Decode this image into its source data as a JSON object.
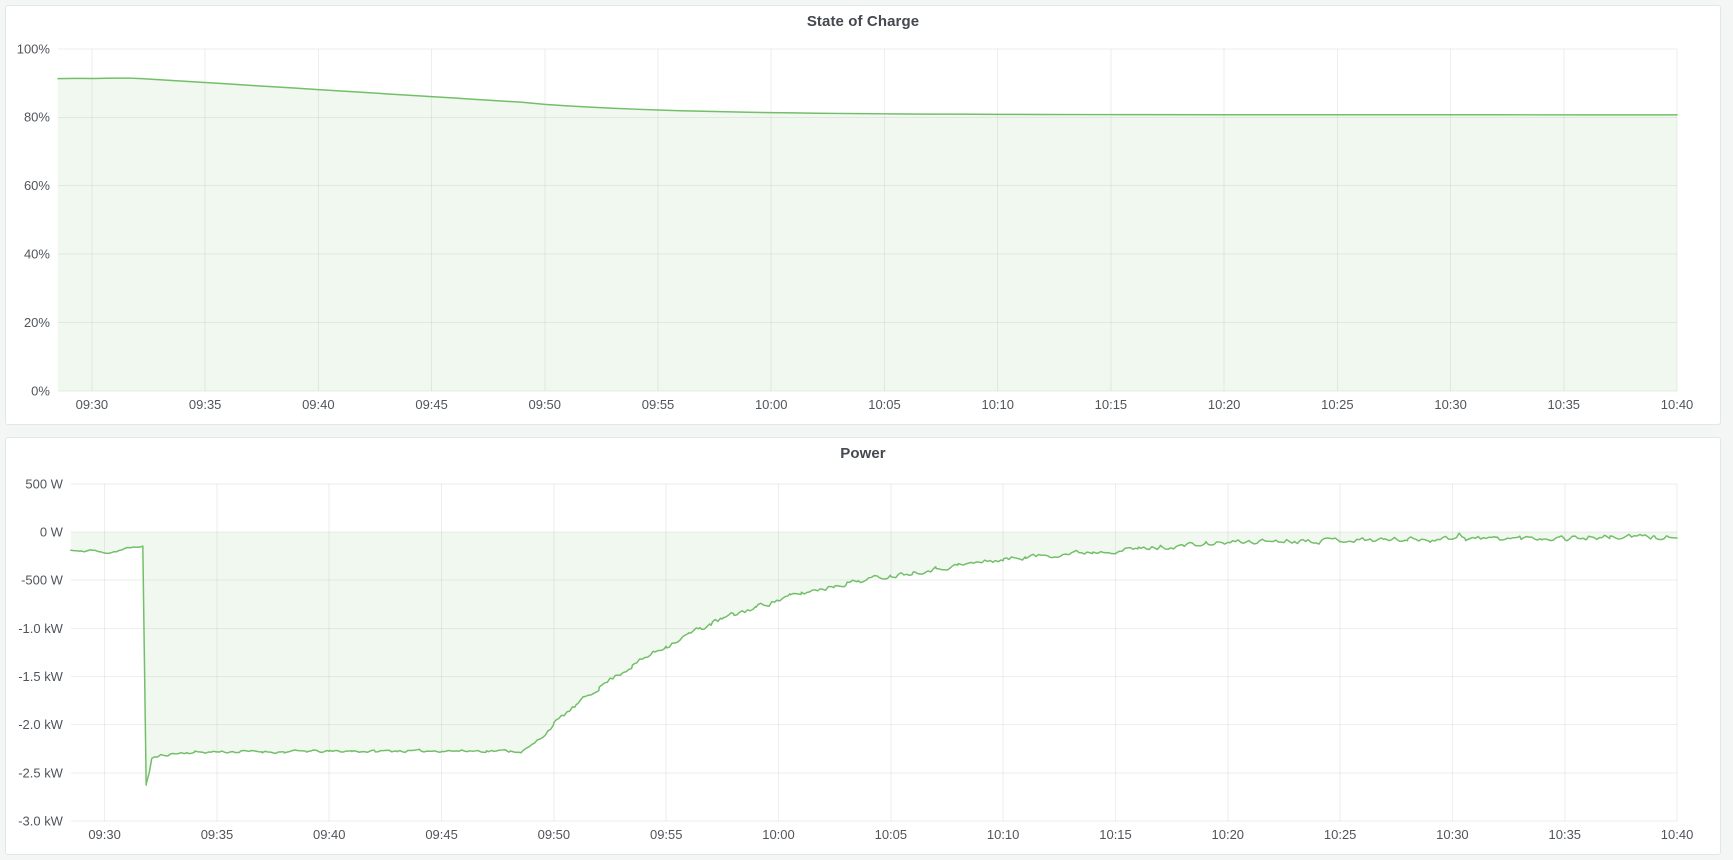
{
  "page": {
    "background_color": "#f4f5f5",
    "panel_background": "#ffffff",
    "panel_border_color": "#e2e6ec",
    "grid_color": "rgba(30,35,42,0.08)",
    "tick_text_color": "#50555b",
    "title_text_color": "#44494f",
    "accent_green": "#73bf69"
  },
  "chart_data": [
    {
      "type": "area",
      "title": "State of Charge",
      "legend": "none",
      "grid": true,
      "unit": "%",
      "line_color": "#73bf69",
      "fill_color": "rgba(115,191,105,0.11)",
      "x_range": [
        568.5,
        640
      ],
      "ylim": [
        0,
        100
      ],
      "x_ticks": [
        {
          "t": 570,
          "label": "09:30"
        },
        {
          "t": 575,
          "label": "09:35"
        },
        {
          "t": 580,
          "label": "09:40"
        },
        {
          "t": 585,
          "label": "09:45"
        },
        {
          "t": 590,
          "label": "09:50"
        },
        {
          "t": 595,
          "label": "09:55"
        },
        {
          "t": 600,
          "label": "10:00"
        },
        {
          "t": 605,
          "label": "10:05"
        },
        {
          "t": 610,
          "label": "10:10"
        },
        {
          "t": 615,
          "label": "10:15"
        },
        {
          "t": 620,
          "label": "10:20"
        },
        {
          "t": 625,
          "label": "10:25"
        },
        {
          "t": 630,
          "label": "10:30"
        },
        {
          "t": 635,
          "label": "10:35"
        },
        {
          "t": 640,
          "label": "10:40"
        }
      ],
      "y_ticks": [
        {
          "v": 100,
          "label": "100%"
        },
        {
          "v": 80,
          "label": "80%"
        },
        {
          "v": 60,
          "label": "60%"
        },
        {
          "v": 40,
          "label": "40%"
        },
        {
          "v": 20,
          "label": "20%"
        },
        {
          "v": 0,
          "label": "0%"
        }
      ],
      "points": [
        [
          568.5,
          91.3
        ],
        [
          569.3,
          91.35
        ],
        [
          570.1,
          91.32
        ],
        [
          570.9,
          91.42
        ],
        [
          571.6,
          91.45
        ],
        [
          572.2,
          91.3
        ],
        [
          573,
          90.97
        ],
        [
          574,
          90.56
        ],
        [
          575,
          90.15
        ],
        [
          576,
          89.74
        ],
        [
          577,
          89.32
        ],
        [
          578,
          88.91
        ],
        [
          579,
          88.5
        ],
        [
          580,
          88.09
        ],
        [
          581,
          87.68
        ],
        [
          582,
          87.26
        ],
        [
          583,
          86.85
        ],
        [
          584,
          86.44
        ],
        [
          585,
          86.03
        ],
        [
          586,
          85.62
        ],
        [
          587,
          85.2
        ],
        [
          588,
          84.79
        ],
        [
          589,
          84.38
        ],
        [
          590,
          83.78
        ],
        [
          591,
          83.34
        ],
        [
          592,
          82.96
        ],
        [
          593,
          82.63
        ],
        [
          594,
          82.36
        ],
        [
          595,
          82.12
        ],
        [
          596,
          81.92
        ],
        [
          597,
          81.74
        ],
        [
          598,
          81.6
        ],
        [
          599,
          81.47
        ],
        [
          600,
          81.36
        ],
        [
          601,
          81.27
        ],
        [
          602,
          81.19
        ],
        [
          603,
          81.12
        ],
        [
          604,
          81.06
        ],
        [
          605,
          81.01
        ],
        [
          606,
          80.97
        ],
        [
          607,
          80.93
        ],
        [
          608,
          80.9
        ],
        [
          609,
          80.87
        ],
        [
          610,
          80.85
        ],
        [
          612,
          80.81
        ],
        [
          614,
          80.79
        ],
        [
          616,
          80.77
        ],
        [
          620,
          80.75
        ],
        [
          624,
          80.74
        ],
        [
          628,
          80.73
        ],
        [
          632,
          80.72
        ],
        [
          636,
          80.71
        ],
        [
          640,
          80.7
        ]
      ]
    },
    {
      "type": "area",
      "title": "Power",
      "legend": "none",
      "grid": true,
      "unit": "W",
      "line_color": "#73bf69",
      "fill_color": "rgba(115,191,105,0.11)",
      "x_range": [
        568.5,
        640
      ],
      "ylim": [
        -3000,
        500
      ],
      "noise_seed": 11,
      "noise_envelope": [
        [
          568.5,
          12
        ],
        [
          571.5,
          12
        ],
        [
          572.2,
          15
        ],
        [
          573,
          18
        ],
        [
          588.6,
          18
        ],
        [
          589.5,
          25
        ],
        [
          592,
          30
        ],
        [
          596,
          35
        ],
        [
          604,
          32
        ],
        [
          612,
          30
        ],
        [
          618,
          32
        ],
        [
          640,
          34
        ]
      ],
      "x_ticks": [
        {
          "t": 570,
          "label": "09:30"
        },
        {
          "t": 575,
          "label": "09:35"
        },
        {
          "t": 580,
          "label": "09:40"
        },
        {
          "t": 585,
          "label": "09:45"
        },
        {
          "t": 590,
          "label": "09:50"
        },
        {
          "t": 595,
          "label": "09:55"
        },
        {
          "t": 600,
          "label": "10:00"
        },
        {
          "t": 605,
          "label": "10:05"
        },
        {
          "t": 610,
          "label": "10:10"
        },
        {
          "t": 615,
          "label": "10:15"
        },
        {
          "t": 620,
          "label": "10:20"
        },
        {
          "t": 625,
          "label": "10:25"
        },
        {
          "t": 630,
          "label": "10:30"
        },
        {
          "t": 635,
          "label": "10:35"
        },
        {
          "t": 640,
          "label": "10:40"
        }
      ],
      "y_ticks": [
        {
          "v": 500,
          "label": "500 W"
        },
        {
          "v": 0,
          "label": "0 W"
        },
        {
          "v": -500,
          "label": "-500 W"
        },
        {
          "v": -1000,
          "label": "-1.0 kW"
        },
        {
          "v": -1500,
          "label": "-1.5 kW"
        },
        {
          "v": -2000,
          "label": "-2.0 kW"
        },
        {
          "v": -2500,
          "label": "-2.5 kW"
        },
        {
          "v": -3000,
          "label": "-3.0 kW"
        }
      ],
      "points": [
        [
          568.5,
          -190
        ],
        [
          569,
          -205
        ],
        [
          569.4,
          -185
        ],
        [
          569.8,
          -210
        ],
        [
          570.2,
          -215
        ],
        [
          570.6,
          -195
        ],
        [
          571.0,
          -170
        ],
        [
          571.5,
          -150
        ],
        [
          571.7,
          -155
        ],
        [
          571.85,
          -2620
        ],
        [
          572.0,
          -2480
        ],
        [
          572.1,
          -2350
        ],
        [
          572.5,
          -2320
        ],
        [
          573,
          -2300
        ],
        [
          574,
          -2285
        ],
        [
          575,
          -2280
        ],
        [
          576,
          -2280
        ],
        [
          577,
          -2278
        ],
        [
          578,
          -2282
        ],
        [
          579,
          -2275
        ],
        [
          580,
          -2278
        ],
        [
          581,
          -2272
        ],
        [
          582,
          -2276
        ],
        [
          583,
          -2270
        ],
        [
          584,
          -2274
        ],
        [
          585,
          -2268
        ],
        [
          586,
          -2272
        ],
        [
          587,
          -2270
        ],
        [
          588,
          -2272
        ],
        [
          588.6,
          -2275
        ],
        [
          589,
          -2220
        ],
        [
          589.5,
          -2120
        ],
        [
          590,
          -1990
        ],
        [
          590.5,
          -1890
        ],
        [
          591,
          -1800
        ],
        [
          591.5,
          -1700
        ],
        [
          592,
          -1615
        ],
        [
          592.5,
          -1530
        ],
        [
          593,
          -1460
        ],
        [
          593.5,
          -1385
        ],
        [
          594,
          -1315
        ],
        [
          594.5,
          -1245
        ],
        [
          595,
          -1180
        ],
        [
          595.5,
          -1120
        ],
        [
          596,
          -1060
        ],
        [
          596.5,
          -1005
        ],
        [
          597,
          -950
        ],
        [
          597.5,
          -905
        ],
        [
          598,
          -860
        ],
        [
          598.5,
          -820
        ],
        [
          599,
          -780
        ],
        [
          599.5,
          -740
        ],
        [
          600,
          -705
        ],
        [
          600.5,
          -670
        ],
        [
          601,
          -640
        ],
        [
          601.5,
          -610
        ],
        [
          602,
          -585
        ],
        [
          602.5,
          -555
        ],
        [
          603,
          -530
        ],
        [
          603.5,
          -510
        ],
        [
          604,
          -490
        ],
        [
          604.5,
          -470
        ],
        [
          605,
          -450
        ],
        [
          606,
          -415
        ],
        [
          607,
          -380
        ],
        [
          608,
          -345
        ],
        [
          609,
          -315
        ],
        [
          610,
          -285
        ],
        [
          611,
          -260
        ],
        [
          612,
          -240
        ],
        [
          613,
          -220
        ],
        [
          614,
          -205
        ],
        [
          615,
          -190
        ],
        [
          616,
          -175
        ],
        [
          617,
          -158
        ],
        [
          618,
          -142
        ],
        [
          619,
          -126
        ],
        [
          620,
          -110
        ],
        [
          621,
          -100
        ],
        [
          622,
          -92
        ],
        [
          623,
          -88
        ],
        [
          624,
          -85
        ],
        [
          625,
          -82
        ],
        [
          626,
          -80
        ],
        [
          627,
          -78
        ],
        [
          628,
          -76
        ],
        [
          629,
          -74
        ],
        [
          630,
          -65
        ],
        [
          630.3,
          -15
        ],
        [
          630.6,
          -70
        ],
        [
          631,
          -68
        ],
        [
          632,
          -66
        ],
        [
          633,
          -64
        ],
        [
          634,
          -62
        ],
        [
          635,
          -60
        ],
        [
          636,
          -58
        ],
        [
          637,
          -55
        ],
        [
          638,
          -52
        ],
        [
          639,
          -55
        ],
        [
          639.5,
          -45
        ],
        [
          640,
          -75
        ]
      ]
    }
  ]
}
